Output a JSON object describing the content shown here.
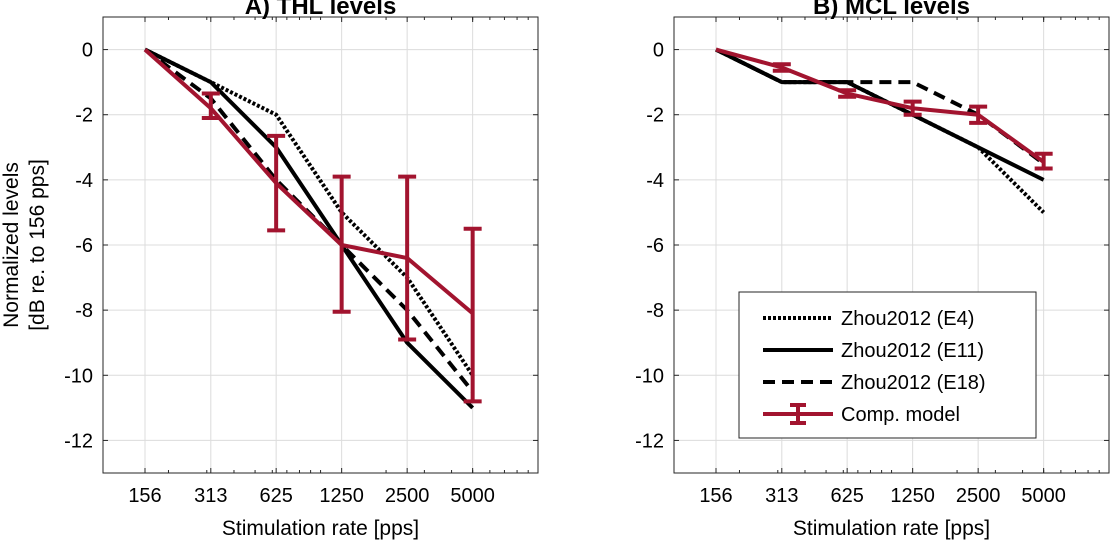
{
  "chart_data": [
    {
      "type": "line",
      "title": "A) THL levels",
      "xlabel": "Stimulation rate [pps]",
      "ylabel": [
        "Normalized levels",
        "[dB re. to 156 pps]"
      ],
      "xscale": "log2",
      "categories": [
        "156",
        "313",
        "625",
        "1250",
        "2500",
        "5000"
      ],
      "x": [
        156,
        313,
        625,
        1250,
        2500,
        5000
      ],
      "yticks": [
        "0",
        "-2",
        "-4",
        "-6",
        "-8",
        "-10",
        "-12"
      ],
      "ylim": [
        -13,
        1
      ],
      "grid": true,
      "series": [
        {
          "name": "Zhou2012 (E4)",
          "style": "dotted",
          "values": [
            0,
            -1,
            -2,
            -5,
            -7,
            -10
          ]
        },
        {
          "name": "Zhou2012 (E11)",
          "style": "solid",
          "values": [
            0,
            -1,
            -3,
            -6,
            -9,
            -11
          ]
        },
        {
          "name": "Zhou2012 (E18)",
          "style": "dashed",
          "values": [
            0,
            -1.5,
            -4,
            -6,
            -8,
            -10.5
          ]
        },
        {
          "name": "Comp. model",
          "style": "errorbar",
          "values": [
            0,
            -1.8,
            -4.1,
            -6,
            -6.4,
            -8.1
          ],
          "err_low": [
            0,
            -2.1,
            -5.55,
            -8.05,
            -8.9,
            -10.8
          ],
          "err_high": [
            0,
            -1.35,
            -2.65,
            -3.9,
            -3.9,
            -5.5
          ]
        }
      ]
    },
    {
      "type": "line",
      "title": "B) MCL levels",
      "xlabel": "Stimulation rate [pps]",
      "xscale": "log2",
      "categories": [
        "156",
        "313",
        "625",
        "1250",
        "2500",
        "5000"
      ],
      "x": [
        156,
        313,
        625,
        1250,
        2500,
        5000
      ],
      "yticks": [
        "0",
        "-2",
        "-4",
        "-6",
        "-8",
        "-10",
        "-12"
      ],
      "ylim": [
        -13,
        1
      ],
      "grid": true,
      "legend": "lower-center",
      "series": [
        {
          "name": "Zhou2012 (E4)",
          "style": "dotted",
          "values": [
            0,
            -1,
            -1,
            -2,
            -3,
            -5
          ]
        },
        {
          "name": "Zhou2012 (E11)",
          "style": "solid",
          "values": [
            0,
            -1,
            -1,
            -2,
            -3,
            -4
          ]
        },
        {
          "name": "Zhou2012 (E18)",
          "style": "dashed",
          "values": [
            0,
            -1,
            -1,
            -1,
            -2,
            -3.5
          ]
        },
        {
          "name": "Comp. model",
          "style": "errorbar",
          "values": [
            0,
            -0.55,
            -1.35,
            -1.8,
            -2,
            -3.45
          ],
          "err_low": [
            0,
            -0.65,
            -1.45,
            -2,
            -2.25,
            -3.65
          ],
          "err_high": [
            0,
            -0.45,
            -1.25,
            -1.6,
            -1.75,
            -3.2
          ]
        }
      ]
    }
  ],
  "colors": {
    "model": "#a2142f",
    "data": "#000000"
  }
}
